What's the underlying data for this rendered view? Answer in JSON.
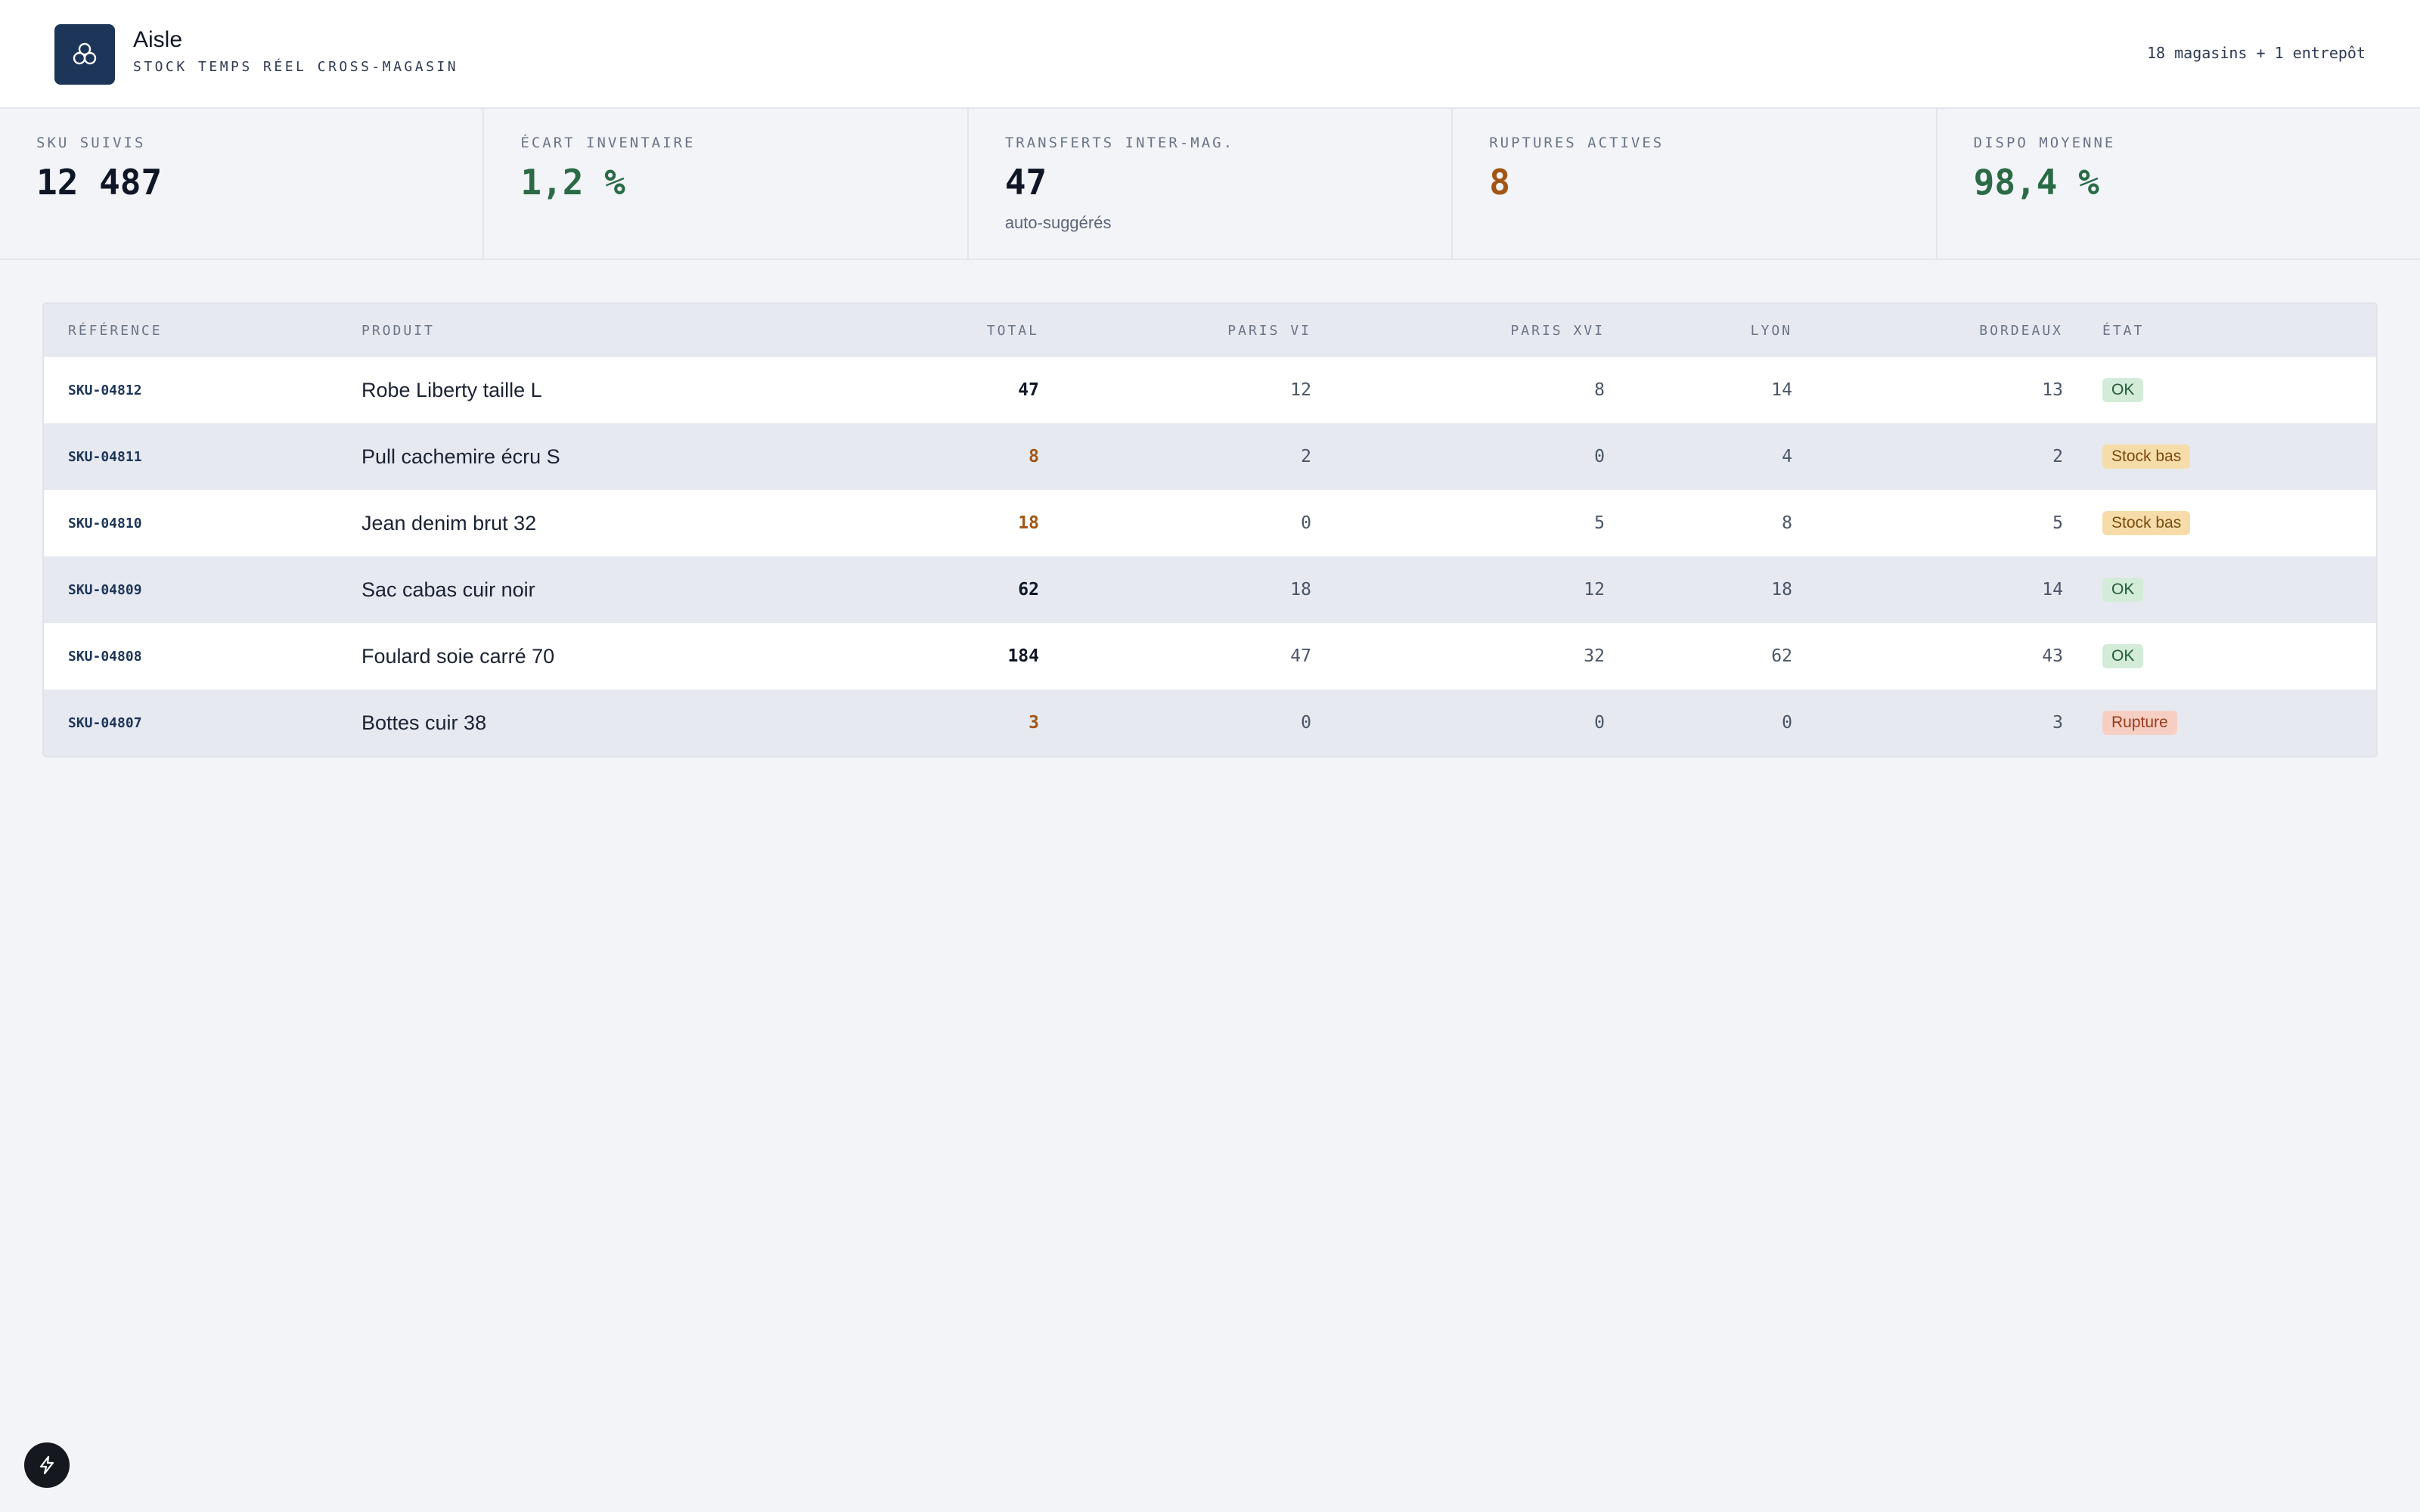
{
  "app": {
    "title": "Aisle",
    "subtitle": "STOCK TEMPS RÉEL CROSS-MAGASIN",
    "info": "18 magasins + 1 entrepôt",
    "logo_icon": "cluster-icon"
  },
  "kpis": [
    {
      "label": "SKU SUIVIS",
      "value": "12 487",
      "note": "",
      "tone": "dark"
    },
    {
      "label": "ÉCART INVENTAIRE",
      "value": "1,2 %",
      "note": "",
      "tone": "green"
    },
    {
      "label": "TRANSFERTS INTER-MAG.",
      "value": "47",
      "note": "auto-suggérés",
      "tone": "dark"
    },
    {
      "label": "RUPTURES ACTIVES",
      "value": "8",
      "note": "",
      "tone": "orange"
    },
    {
      "label": "DISPO MOYENNE",
      "value": "98,4 %",
      "note": "",
      "tone": "green"
    }
  ],
  "table": {
    "headers": {
      "ref": "RÉFÉRENCE",
      "product": "PRODUIT",
      "total": "TOTAL",
      "paris6": "PARIS VI",
      "paris16": "PARIS XVI",
      "lyon": "LYON",
      "bordeaux": "BORDEAUX",
      "state": "ÉTAT"
    },
    "rows": [
      {
        "ref": "SKU-04812",
        "product": "Robe Liberty taille L",
        "total": "47",
        "paris6": "12",
        "paris16": "8",
        "lyon": "14",
        "bordeaux": "13",
        "state": "OK",
        "state_kind": "ok",
        "total_kind": "dark"
      },
      {
        "ref": "SKU-04811",
        "product": "Pull cachemire écru S",
        "total": "8",
        "paris6": "2",
        "paris16": "0",
        "lyon": "4",
        "bordeaux": "2",
        "state": "Stock bas",
        "state_kind": "low",
        "total_kind": "warn"
      },
      {
        "ref": "SKU-04810",
        "product": "Jean denim brut 32",
        "total": "18",
        "paris6": "0",
        "paris16": "5",
        "lyon": "8",
        "bordeaux": "5",
        "state": "Stock bas",
        "state_kind": "low",
        "total_kind": "warn"
      },
      {
        "ref": "SKU-04809",
        "product": "Sac cabas cuir noir",
        "total": "62",
        "paris6": "18",
        "paris16": "12",
        "lyon": "18",
        "bordeaux": "14",
        "state": "OK",
        "state_kind": "ok",
        "total_kind": "dark"
      },
      {
        "ref": "SKU-04808",
        "product": "Foulard soie carré 70",
        "total": "184",
        "paris6": "47",
        "paris16": "32",
        "lyon": "62",
        "bordeaux": "43",
        "state": "OK",
        "state_kind": "ok",
        "total_kind": "dark"
      },
      {
        "ref": "SKU-04807",
        "product": "Bottes cuir 38",
        "total": "3",
        "paris6": "0",
        "paris16": "0",
        "lyon": "0",
        "bordeaux": "3",
        "state": "Rupture",
        "state_kind": "out",
        "total_kind": "warn"
      }
    ]
  },
  "fab": {
    "icon": "lightning-icon"
  },
  "colors": {
    "brand": "#1d3559",
    "ok_bg": "#d3ecd9",
    "low_bg": "#f6dca8",
    "out_bg": "#f6cfc2",
    "warn_text": "#a25615",
    "good_text": "#2a6b46"
  }
}
